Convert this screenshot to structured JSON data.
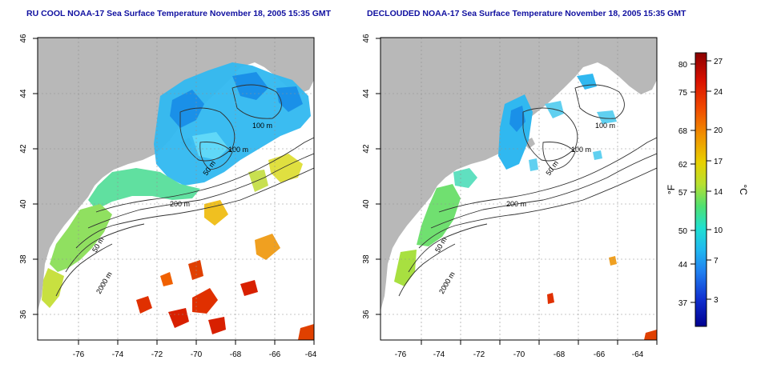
{
  "left_map": {
    "title": "RU COOL NOAA-17 Sea Surface Temperature November 18, 2005 15:35 GMT",
    "contour_labels": [
      "100 m",
      "100 m",
      "50 m",
      "200 m",
      "50 m",
      "2000 m"
    ]
  },
  "right_map": {
    "title": "DECLOUDED NOAA-17 Sea Surface Temperature November 18, 2005 15:35 GMT",
    "contour_labels": [
      "100 m",
      "100 m",
      "50 m",
      "200 m",
      "50 m",
      "2000 m"
    ]
  },
  "axes": {
    "lat_ticks": [
      "46",
      "44",
      "42",
      "40",
      "38",
      "36"
    ],
    "lon_ticks": [
      "-76",
      "-74",
      "-72",
      "-70",
      "-68",
      "-66",
      "-64"
    ]
  },
  "colorbar": {
    "fahrenheit_label": "°F",
    "celsius_label": "°C",
    "fahrenheit_ticks": [
      "80",
      "75",
      "68",
      "62",
      "57",
      "50",
      "44",
      "37"
    ],
    "celsius_ticks": [
      "27",
      "24",
      "20",
      "17",
      "14",
      "10",
      "7",
      "3"
    ],
    "colors": [
      "#a00000",
      "#d82000",
      "#f05000",
      "#f09000",
      "#e8c800",
      "#c8e020",
      "#60e060",
      "#20e0c0",
      "#20c8f0",
      "#2090f0",
      "#1050e0",
      "#0010a0"
    ]
  },
  "colors": {
    "land": "#b8b8b8",
    "ocean_cloud": "#ffffff",
    "title": "#1010a0",
    "grid": "#909090"
  }
}
